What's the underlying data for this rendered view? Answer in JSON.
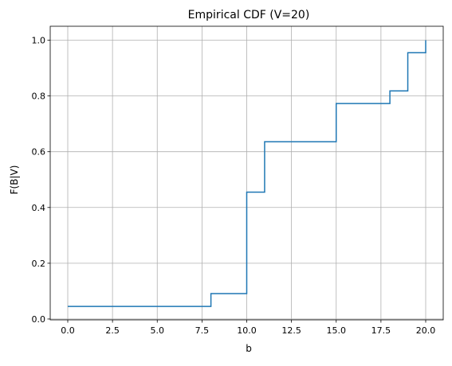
{
  "chart_data": {
    "type": "line",
    "step": "post",
    "title": "Empirical CDF (V=20)",
    "xlabel": "b",
    "ylabel": "F(B|V)",
    "xlim": [
      -0.98,
      20.98
    ],
    "ylim": [
      -0.003,
      1.05
    ],
    "xticks": [
      0.0,
      2.5,
      5.0,
      7.5,
      10.0,
      12.5,
      15.0,
      17.5,
      20.0
    ],
    "xtick_labels": [
      "0.0",
      "2.5",
      "5.0",
      "7.5",
      "10.0",
      "12.5",
      "15.0",
      "17.5",
      "20.0"
    ],
    "yticks": [
      0.0,
      0.2,
      0.4,
      0.6,
      0.8,
      1.0
    ],
    "ytick_labels": [
      "0.0",
      "0.2",
      "0.4",
      "0.6",
      "0.8",
      "1.0"
    ],
    "grid": true,
    "series": [
      {
        "color": "#1f77b4",
        "x": [
          0,
          8,
          10,
          11,
          15,
          18,
          19,
          20
        ],
        "y": [
          0.045,
          0.091,
          0.455,
          0.636,
          0.773,
          0.818,
          0.955,
          1.0
        ]
      }
    ]
  }
}
